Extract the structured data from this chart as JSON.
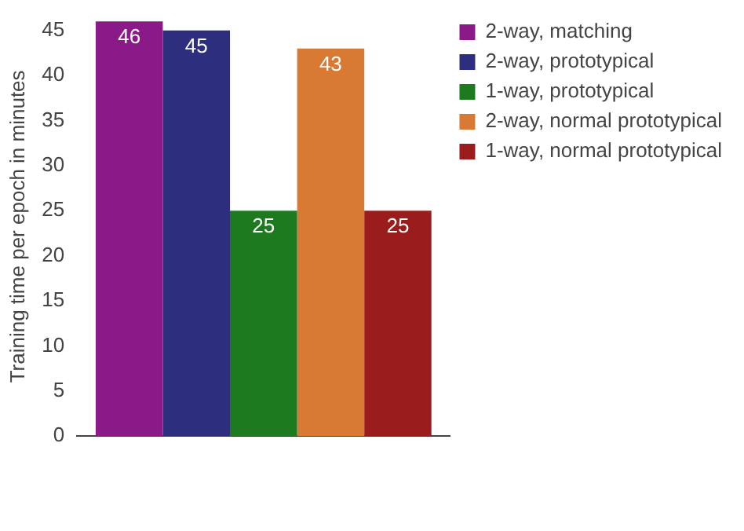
{
  "chart_data": {
    "type": "bar",
    "ylabel": "Training time per epoch in minutes",
    "categories": [
      null
    ],
    "series": [
      {
        "name": "2-way, matching",
        "color": "#8b1a89",
        "values": [
          46
        ]
      },
      {
        "name": "2-way, prototypical",
        "color": "#2e2e7e",
        "values": [
          45
        ]
      },
      {
        "name": "1-way, prototypical",
        "color": "#1e7a1e",
        "values": [
          25
        ]
      },
      {
        "name": "2-way, normal prototypical",
        "color": "#d87a34",
        "values": [
          43
        ]
      },
      {
        "name": "1-way, normal prototypical",
        "color": "#9a1c1c",
        "values": [
          25
        ]
      }
    ],
    "ylim": [
      0,
      46.5
    ],
    "yticks": [
      0,
      5,
      10,
      15,
      20,
      25,
      30,
      35,
      40,
      45
    ],
    "grid": false,
    "legend": "top right",
    "data_labels": true
  }
}
